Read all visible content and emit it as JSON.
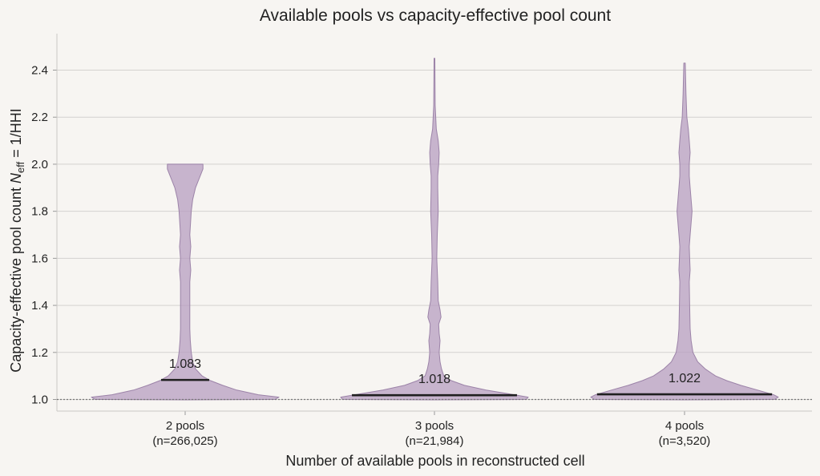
{
  "chart_data": {
    "type": "violin",
    "title": "Available pools vs capacity-effective pool count",
    "xlabel": "Number of available pools in reconstructed cell",
    "ylabel_prefix": "Capacity-effective pool count  ",
    "ylabel_var": "N",
    "ylabel_sub": "eff",
    "ylabel_suffix": " = 1/HHI",
    "ylim": [
      0.95,
      2.56
    ],
    "yticks": [
      1.0,
      1.2,
      1.4,
      1.6,
      1.8,
      2.0,
      2.2,
      2.4
    ],
    "ytick_labels": [
      "1.0",
      "1.2",
      "1.4",
      "1.6",
      "1.8",
      "2.0",
      "2.2",
      "2.4"
    ],
    "grid": "horizontal",
    "reference_line_y": 1.0,
    "fill_color": "#b79ec0",
    "stroke_color": "#9c83a8",
    "groups": [
      {
        "name": "2 pools",
        "n_label": "(n=266,025)",
        "median": 1.083,
        "median_label": "1.083",
        "profile": [
          [
            1.0,
            0.96
          ],
          [
            1.01,
            1.0
          ],
          [
            1.02,
            0.78
          ],
          [
            1.04,
            0.55
          ],
          [
            1.06,
            0.4
          ],
          [
            1.08,
            0.27
          ],
          [
            1.1,
            0.18
          ],
          [
            1.13,
            0.11
          ],
          [
            1.16,
            0.08
          ],
          [
            1.2,
            0.065
          ],
          [
            1.25,
            0.055
          ],
          [
            1.3,
            0.05
          ],
          [
            1.4,
            0.05
          ],
          [
            1.5,
            0.05
          ],
          [
            1.55,
            0.06
          ],
          [
            1.6,
            0.05
          ],
          [
            1.65,
            0.06
          ],
          [
            1.7,
            0.05
          ],
          [
            1.8,
            0.065
          ],
          [
            1.85,
            0.08
          ],
          [
            1.9,
            0.11
          ],
          [
            1.93,
            0.14
          ],
          [
            1.96,
            0.17
          ],
          [
            1.98,
            0.19
          ],
          [
            2.0,
            0.19
          ]
        ]
      },
      {
        "name": "3 pools",
        "n_label": "(n=21,984)",
        "median": 1.018,
        "median_label": "1.018",
        "profile": [
          [
            1.0,
            0.98
          ],
          [
            1.01,
            1.0
          ],
          [
            1.02,
            0.85
          ],
          [
            1.04,
            0.55
          ],
          [
            1.06,
            0.32
          ],
          [
            1.08,
            0.18
          ],
          [
            1.1,
            0.1
          ],
          [
            1.13,
            0.075
          ],
          [
            1.16,
            0.06
          ],
          [
            1.2,
            0.05
          ],
          [
            1.25,
            0.06
          ],
          [
            1.28,
            0.05
          ],
          [
            1.32,
            0.045
          ],
          [
            1.35,
            0.07
          ],
          [
            1.38,
            0.06
          ],
          [
            1.42,
            0.04
          ],
          [
            1.5,
            0.035
          ],
          [
            1.6,
            0.025
          ],
          [
            1.7,
            0.03
          ],
          [
            1.8,
            0.04
          ],
          [
            1.9,
            0.035
          ],
          [
            1.95,
            0.035
          ],
          [
            2.0,
            0.045
          ],
          [
            2.05,
            0.05
          ],
          [
            2.1,
            0.04
          ],
          [
            2.15,
            0.02
          ],
          [
            2.25,
            0.008
          ],
          [
            2.35,
            0.006
          ],
          [
            2.45,
            0.004
          ]
        ]
      },
      {
        "name": "4 pools",
        "n_label": "(n=3,520)",
        "median": 1.022,
        "median_label": "1.022",
        "profile": [
          [
            1.0,
            0.96
          ],
          [
            1.01,
            1.0
          ],
          [
            1.02,
            0.95
          ],
          [
            1.04,
            0.78
          ],
          [
            1.06,
            0.6
          ],
          [
            1.08,
            0.45
          ],
          [
            1.1,
            0.33
          ],
          [
            1.13,
            0.22
          ],
          [
            1.16,
            0.14
          ],
          [
            1.2,
            0.09
          ],
          [
            1.25,
            0.07
          ],
          [
            1.3,
            0.06
          ],
          [
            1.4,
            0.055
          ],
          [
            1.5,
            0.05
          ],
          [
            1.55,
            0.06
          ],
          [
            1.6,
            0.055
          ],
          [
            1.65,
            0.05
          ],
          [
            1.7,
            0.06
          ],
          [
            1.75,
            0.07
          ],
          [
            1.8,
            0.08
          ],
          [
            1.85,
            0.07
          ],
          [
            1.9,
            0.06
          ],
          [
            1.95,
            0.05
          ],
          [
            2.0,
            0.05
          ],
          [
            2.05,
            0.06
          ],
          [
            2.1,
            0.05
          ],
          [
            2.15,
            0.04
          ],
          [
            2.2,
            0.025
          ],
          [
            2.3,
            0.015
          ],
          [
            2.43,
            0.008
          ]
        ]
      }
    ]
  }
}
